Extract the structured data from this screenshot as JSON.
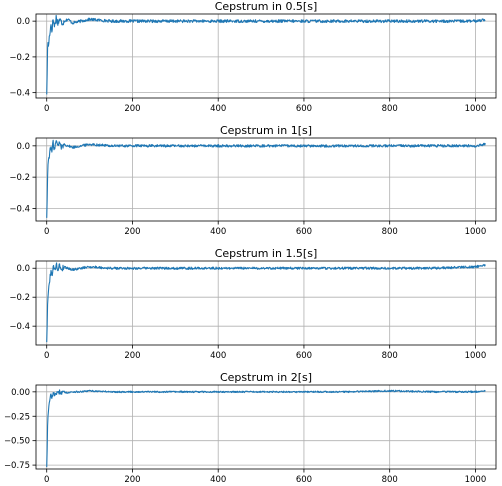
{
  "chart_data": [
    {
      "type": "line",
      "title": "Cepstrum in 0.5[s]",
      "xlabel": "",
      "ylabel": "",
      "xlim": [
        -25,
        1048
      ],
      "ylim": [
        -0.43,
        0.04
      ],
      "xticks": [
        0,
        200,
        400,
        600,
        800,
        1000
      ],
      "xtick_labels": [
        "0",
        "200",
        "400",
        "600",
        "800",
        "1000"
      ],
      "yticks": [
        0.0,
        -0.2,
        -0.4
      ],
      "ytick_labels": [
        "0.0",
        "−0.2",
        "−0.4"
      ],
      "grid": true,
      "color": "#1f77b4",
      "series": [
        {
          "x": [
            0,
            1,
            2,
            3,
            4,
            6,
            8,
            10,
            12,
            15,
            18,
            22,
            26,
            30,
            35,
            40,
            50,
            60,
            80,
            100,
            150,
            200,
            300,
            400,
            500,
            600,
            700,
            800,
            900,
            1000,
            1023
          ],
          "y": [
            -0.41,
            -0.3,
            -0.15,
            -0.12,
            -0.14,
            -0.09,
            -0.05,
            -0.02,
            -0.05,
            0.01,
            -0.03,
            0.02,
            -0.01,
            0.01,
            -0.01,
            0.0,
            0.01,
            -0.01,
            0.0,
            0.01,
            0.0,
            0.0,
            0.0,
            0.0,
            0.0,
            0.0,
            0.0,
            0.0,
            0.0,
            0.0,
            0.01
          ]
        }
      ]
    },
    {
      "type": "line",
      "title": "Cepstrum in 1[s]",
      "xlabel": "",
      "ylabel": "",
      "xlim": [
        -25,
        1048
      ],
      "ylim": [
        -0.48,
        0.05
      ],
      "xticks": [
        0,
        200,
        400,
        600,
        800,
        1000
      ],
      "xtick_labels": [
        "0",
        "200",
        "400",
        "600",
        "800",
        "1000"
      ],
      "yticks": [
        0.0,
        -0.2,
        -0.4
      ],
      "ytick_labels": [
        "0.0",
        "−0.2",
        "−0.4"
      ],
      "grid": true,
      "color": "#1f77b4",
      "series": [
        {
          "x": [
            0,
            1,
            2,
            3,
            4,
            6,
            8,
            10,
            12,
            15,
            18,
            22,
            26,
            30,
            35,
            40,
            50,
            60,
            80,
            100,
            150,
            200,
            300,
            400,
            500,
            600,
            700,
            800,
            900,
            1000,
            1023
          ],
          "y": [
            -0.46,
            -0.35,
            -0.2,
            -0.12,
            -0.09,
            -0.06,
            -0.03,
            -0.01,
            -0.04,
            0.02,
            -0.02,
            0.03,
            0.0,
            0.02,
            -0.01,
            0.01,
            0.0,
            -0.01,
            0.0,
            0.01,
            0.0,
            0.0,
            0.0,
            0.0,
            0.0,
            0.0,
            0.0,
            0.0,
            0.0,
            0.0,
            0.01
          ]
        }
      ]
    },
    {
      "type": "line",
      "title": "Cepstrum in 1.5[s]",
      "xlabel": "",
      "ylabel": "",
      "xlim": [
        -25,
        1048
      ],
      "ylim": [
        -0.53,
        0.05
      ],
      "xticks": [
        0,
        200,
        400,
        600,
        800,
        1000
      ],
      "xtick_labels": [
        "0",
        "200",
        "400",
        "600",
        "800",
        "1000"
      ],
      "yticks": [
        0.0,
        -0.2,
        -0.4
      ],
      "ytick_labels": [
        "0.0",
        "−0.2",
        "−0.4"
      ],
      "grid": true,
      "color": "#1f77b4",
      "series": [
        {
          "x": [
            0,
            1,
            2,
            3,
            4,
            6,
            8,
            10,
            12,
            15,
            18,
            22,
            26,
            30,
            35,
            40,
            50,
            60,
            80,
            100,
            150,
            200,
            300,
            400,
            500,
            600,
            700,
            800,
            900,
            1000,
            1023
          ],
          "y": [
            -0.51,
            -0.4,
            -0.25,
            -0.2,
            -0.16,
            -0.1,
            -0.05,
            -0.02,
            -0.06,
            0.02,
            -0.02,
            0.03,
            -0.01,
            0.02,
            -0.01,
            0.01,
            0.0,
            -0.01,
            0.0,
            0.01,
            0.0,
            0.0,
            0.0,
            0.0,
            0.0,
            0.0,
            0.0,
            0.0,
            0.0,
            0.01,
            0.02
          ]
        }
      ]
    },
    {
      "type": "line",
      "title": "Cepstrum in 2[s]",
      "xlabel": "",
      "ylabel": "",
      "xlim": [
        -25,
        1048
      ],
      "ylim": [
        -0.79,
        0.07
      ],
      "xticks": [
        0,
        200,
        400,
        600,
        800,
        1000
      ],
      "xtick_labels": [
        "0",
        "200",
        "400",
        "600",
        "800",
        "1000"
      ],
      "yticks": [
        0.0,
        -0.25,
        -0.5,
        -0.75
      ],
      "ytick_labels": [
        "0.00",
        "−0.25",
        "−0.50",
        "−0.75"
      ],
      "grid": true,
      "color": "#1f77b4",
      "series": [
        {
          "x": [
            0,
            1,
            2,
            3,
            4,
            6,
            8,
            10,
            12,
            15,
            18,
            22,
            26,
            30,
            35,
            40,
            50,
            60,
            80,
            100,
            150,
            200,
            300,
            400,
            500,
            600,
            700,
            800,
            900,
            1000,
            1023
          ],
          "y": [
            -0.77,
            -0.6,
            -0.35,
            -0.25,
            -0.2,
            -0.12,
            -0.06,
            -0.03,
            -0.05,
            -0.02,
            -0.03,
            -0.01,
            -0.02,
            0.0,
            -0.01,
            0.0,
            -0.01,
            0.0,
            0.0,
            0.01,
            0.0,
            0.0,
            0.0,
            0.0,
            0.0,
            0.0,
            0.0,
            0.01,
            0.0,
            0.0,
            0.01
          ]
        }
      ]
    }
  ]
}
